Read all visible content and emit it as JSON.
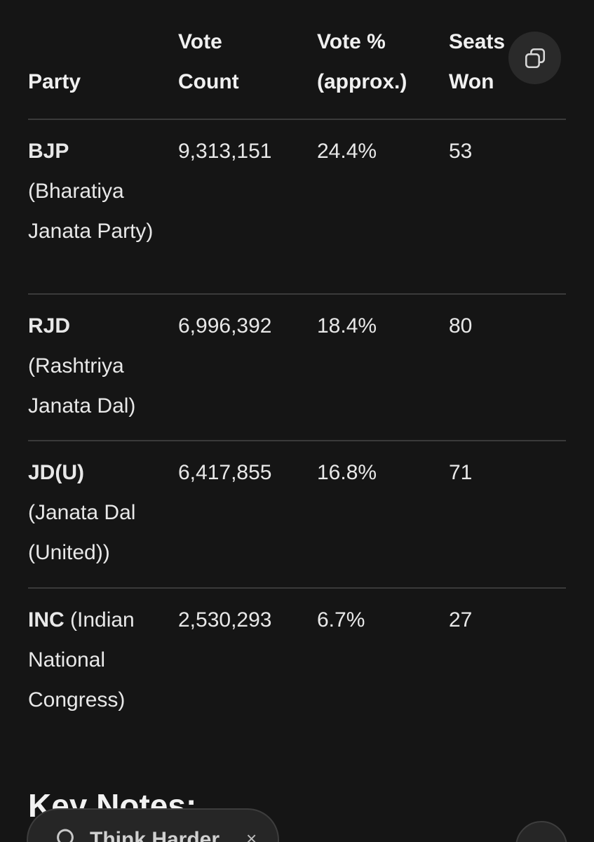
{
  "table": {
    "headers": [
      [
        "",
        "Party"
      ],
      [
        "Vote",
        "Count"
      ],
      [
        "Vote %",
        "(approx.)"
      ],
      [
        "Seats",
        "Won"
      ]
    ],
    "rows": [
      {
        "abbr": "BJP",
        "full": "(Bharatiya Janata Party)",
        "votes": "9,313,151",
        "pct": "24.4%",
        "seats": "53"
      },
      {
        "abbr": "RJD",
        "full": "(Rashtriya Janata Dal)",
        "votes": "6,996,392",
        "pct": "18.4%",
        "seats": "80"
      },
      {
        "abbr": "JD(U)",
        "full": "(Janata Dal (United))",
        "votes": "6,417,855",
        "pct": "16.8%",
        "seats": "71"
      },
      {
        "abbr": "INC",
        "full": "(Indian National Congress)",
        "votes": "2,530,293",
        "pct": "6.7%",
        "seats": "27"
      }
    ]
  },
  "section_heading": "Key Notes:",
  "chip": {
    "label": "Think Harder",
    "icon": "lightbulb-icon",
    "close": "×"
  },
  "icons": {
    "copy": "copy-icon"
  },
  "colors": {
    "background": "#151515",
    "text": "#ececec",
    "divider": "#3a3a3a",
    "button_bg": "#2a2a2a"
  }
}
